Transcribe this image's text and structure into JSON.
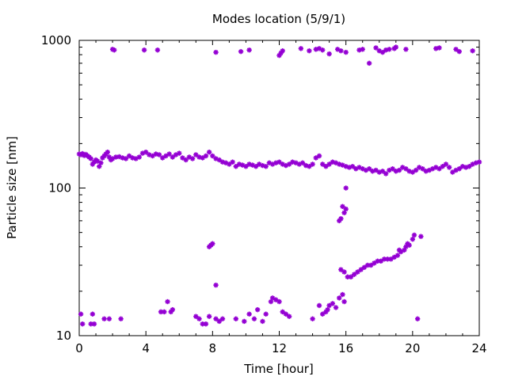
{
  "chart_data": {
    "type": "scatter",
    "title": "Modes location (5/9/1)",
    "xlabel": "Time [hour]",
    "ylabel": "Particle size [nm]",
    "xlim": [
      0,
      24
    ],
    "ylim": [
      10,
      1000
    ],
    "y_scale": "log",
    "x_ticks": [
      0,
      4,
      8,
      12,
      16,
      20,
      24
    ],
    "x_tick_labels": [
      "0",
      "4",
      "8",
      "12",
      "16",
      "20",
      "24"
    ],
    "y_ticks": [
      10,
      100,
      1000
    ],
    "y_tick_labels": [
      "10",
      "100",
      "1000"
    ],
    "grid": false,
    "marker_color": "#9400D3",
    "series": [
      {
        "values_desc": "points as [hour, nm]",
        "points": [
          [
            0.0,
            170
          ],
          [
            0.1,
            168
          ],
          [
            0.2,
            171
          ],
          [
            0.3,
            166
          ],
          [
            0.4,
            169
          ],
          [
            0.5,
            165
          ],
          [
            0.6,
            162
          ],
          [
            0.7,
            158
          ],
          [
            0.8,
            145
          ],
          [
            0.9,
            150
          ],
          [
            1.0,
            155
          ],
          [
            1.1,
            152
          ],
          [
            1.2,
            140
          ],
          [
            1.3,
            148
          ],
          [
            1.4,
            160
          ],
          [
            1.5,
            165
          ],
          [
            1.6,
            170
          ],
          [
            1.7,
            175
          ],
          [
            1.8,
            162
          ],
          [
            1.9,
            155
          ],
          [
            2.0,
            158
          ],
          [
            2.2,
            162
          ],
          [
            2.4,
            163
          ],
          [
            2.6,
            160
          ],
          [
            2.8,
            158
          ],
          [
            3.0,
            165
          ],
          [
            3.2,
            160
          ],
          [
            3.4,
            158
          ],
          [
            3.6,
            162
          ],
          [
            3.8,
            172
          ],
          [
            4.0,
            175
          ],
          [
            4.2,
            168
          ],
          [
            4.4,
            165
          ],
          [
            4.6,
            170
          ],
          [
            4.8,
            168
          ],
          [
            5.0,
            160
          ],
          [
            5.2,
            165
          ],
          [
            5.4,
            170
          ],
          [
            5.6,
            162
          ],
          [
            5.8,
            168
          ],
          [
            6.0,
            172
          ],
          [
            6.2,
            160
          ],
          [
            6.4,
            155
          ],
          [
            6.6,
            162
          ],
          [
            6.8,
            158
          ],
          [
            7.0,
            168
          ],
          [
            7.2,
            162
          ],
          [
            7.4,
            160
          ],
          [
            7.6,
            165
          ],
          [
            7.8,
            175
          ],
          [
            8.0,
            165
          ],
          [
            8.2,
            158
          ],
          [
            8.4,
            155
          ],
          [
            8.6,
            150
          ],
          [
            8.8,
            148
          ],
          [
            9.0,
            145
          ],
          [
            9.2,
            150
          ],
          [
            9.4,
            140
          ],
          [
            9.6,
            145
          ],
          [
            9.8,
            143
          ],
          [
            10.0,
            140
          ],
          [
            10.2,
            145
          ],
          [
            10.4,
            143
          ],
          [
            10.6,
            140
          ],
          [
            10.8,
            145
          ],
          [
            11.0,
            142
          ],
          [
            11.2,
            140
          ],
          [
            11.4,
            148
          ],
          [
            11.6,
            145
          ],
          [
            11.8,
            148
          ],
          [
            12.0,
            150
          ],
          [
            12.2,
            145
          ],
          [
            12.4,
            142
          ],
          [
            12.6,
            145
          ],
          [
            12.8,
            150
          ],
          [
            13.0,
            148
          ],
          [
            13.2,
            145
          ],
          [
            13.4,
            148
          ],
          [
            13.6,
            142
          ],
          [
            13.8,
            140
          ],
          [
            14.0,
            145
          ],
          [
            14.2,
            160
          ],
          [
            14.4,
            165
          ],
          [
            14.6,
            145
          ],
          [
            14.8,
            140
          ],
          [
            15.0,
            145
          ],
          [
            15.2,
            150
          ],
          [
            15.4,
            148
          ],
          [
            15.6,
            145
          ],
          [
            15.8,
            143
          ],
          [
            16.0,
            140
          ],
          [
            16.2,
            138
          ],
          [
            16.4,
            140
          ],
          [
            16.6,
            135
          ],
          [
            16.8,
            138
          ],
          [
            17.0,
            135
          ],
          [
            17.2,
            132
          ],
          [
            17.4,
            135
          ],
          [
            17.6,
            130
          ],
          [
            17.8,
            132
          ],
          [
            18.0,
            128
          ],
          [
            18.2,
            130
          ],
          [
            18.4,
            125
          ],
          [
            18.6,
            132
          ],
          [
            18.8,
            135
          ],
          [
            19.0,
            130
          ],
          [
            19.2,
            132
          ],
          [
            19.4,
            138
          ],
          [
            19.6,
            135
          ],
          [
            19.8,
            130
          ],
          [
            20.0,
            128
          ],
          [
            20.2,
            132
          ],
          [
            20.4,
            138
          ],
          [
            20.6,
            135
          ],
          [
            20.8,
            130
          ],
          [
            21.0,
            132
          ],
          [
            21.2,
            135
          ],
          [
            21.4,
            138
          ],
          [
            21.6,
            135
          ],
          [
            21.8,
            140
          ],
          [
            22.0,
            145
          ],
          [
            22.2,
            138
          ],
          [
            22.4,
            128
          ],
          [
            22.6,
            132
          ],
          [
            22.8,
            135
          ],
          [
            23.0,
            140
          ],
          [
            23.2,
            138
          ],
          [
            23.4,
            140
          ],
          [
            23.6,
            145
          ],
          [
            23.8,
            148
          ],
          [
            24.0,
            150
          ],
          [
            2.0,
            870
          ],
          [
            2.1,
            860
          ],
          [
            3.9,
            860
          ],
          [
            4.7,
            860
          ],
          [
            8.2,
            830
          ],
          [
            9.7,
            840
          ],
          [
            10.2,
            860
          ],
          [
            12.0,
            790
          ],
          [
            12.1,
            820
          ],
          [
            12.2,
            850
          ],
          [
            13.3,
            880
          ],
          [
            13.8,
            850
          ],
          [
            14.2,
            870
          ],
          [
            14.4,
            880
          ],
          [
            14.6,
            860
          ],
          [
            15.0,
            810
          ],
          [
            15.5,
            870
          ],
          [
            15.7,
            850
          ],
          [
            16.0,
            830
          ],
          [
            16.8,
            860
          ],
          [
            17.0,
            870
          ],
          [
            17.4,
            700
          ],
          [
            17.8,
            890
          ],
          [
            18.0,
            850
          ],
          [
            18.2,
            830
          ],
          [
            18.4,
            860
          ],
          [
            18.6,
            870
          ],
          [
            18.9,
            880
          ],
          [
            19.0,
            900
          ],
          [
            19.6,
            870
          ],
          [
            21.4,
            880
          ],
          [
            21.6,
            890
          ],
          [
            22.6,
            870
          ],
          [
            22.8,
            840
          ],
          [
            23.6,
            850
          ],
          [
            15.6,
            60
          ],
          [
            15.8,
            75
          ],
          [
            15.9,
            68
          ],
          [
            16.0,
            72
          ],
          [
            16.0,
            100
          ],
          [
            15.7,
            62
          ],
          [
            7.8,
            40
          ],
          [
            7.9,
            41
          ],
          [
            8.0,
            42
          ],
          [
            8.2,
            22
          ],
          [
            15.7,
            28
          ],
          [
            15.9,
            27
          ],
          [
            16.1,
            25
          ],
          [
            16.3,
            25
          ],
          [
            16.5,
            26
          ],
          [
            16.7,
            27
          ],
          [
            16.9,
            28
          ],
          [
            17.1,
            29
          ],
          [
            17.3,
            30
          ],
          [
            17.5,
            30
          ],
          [
            17.7,
            31
          ],
          [
            17.9,
            32
          ],
          [
            18.1,
            32
          ],
          [
            18.3,
            33
          ],
          [
            18.5,
            33
          ],
          [
            18.7,
            33
          ],
          [
            18.9,
            34
          ],
          [
            19.1,
            35
          ],
          [
            19.2,
            38
          ],
          [
            19.3,
            37
          ],
          [
            19.5,
            38
          ],
          [
            19.6,
            40
          ],
          [
            19.7,
            42
          ],
          [
            19.8,
            41
          ],
          [
            20.0,
            45
          ],
          [
            20.1,
            48
          ],
          [
            20.5,
            47
          ],
          [
            0.1,
            14
          ],
          [
            0.2,
            12
          ],
          [
            0.7,
            12
          ],
          [
            0.8,
            14
          ],
          [
            0.9,
            12
          ],
          [
            1.5,
            13
          ],
          [
            1.8,
            13
          ],
          [
            2.5,
            13
          ],
          [
            4.9,
            14.5
          ],
          [
            5.1,
            14.5
          ],
          [
            5.3,
            17
          ],
          [
            5.5,
            14.5
          ],
          [
            5.6,
            15
          ],
          [
            7.0,
            13.5
          ],
          [
            7.2,
            13
          ],
          [
            7.4,
            12
          ],
          [
            7.6,
            12
          ],
          [
            7.8,
            13.5
          ],
          [
            8.2,
            13
          ],
          [
            8.4,
            12.5
          ],
          [
            8.6,
            13
          ],
          [
            9.4,
            13
          ],
          [
            9.9,
            12.5
          ],
          [
            10.2,
            14
          ],
          [
            10.5,
            13
          ],
          [
            10.7,
            15
          ],
          [
            11.0,
            12.5
          ],
          [
            11.2,
            14
          ],
          [
            11.5,
            17
          ],
          [
            11.6,
            18
          ],
          [
            11.8,
            17.5
          ],
          [
            12.0,
            17
          ],
          [
            12.2,
            14.5
          ],
          [
            12.4,
            14
          ],
          [
            12.6,
            13.5
          ],
          [
            14.0,
            13
          ],
          [
            14.4,
            16
          ],
          [
            14.6,
            14
          ],
          [
            14.8,
            14.5
          ],
          [
            14.9,
            15
          ],
          [
            15.0,
            16
          ],
          [
            15.2,
            16.5
          ],
          [
            15.4,
            15.5
          ],
          [
            15.6,
            18
          ],
          [
            15.8,
            19
          ],
          [
            15.9,
            17
          ],
          [
            20.3,
            13
          ]
        ]
      }
    ]
  }
}
